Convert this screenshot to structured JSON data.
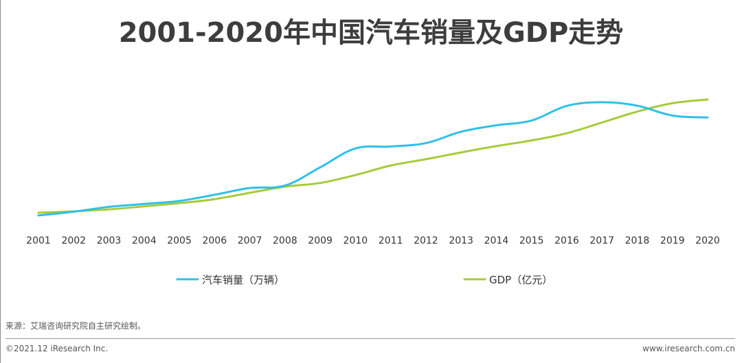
{
  "title": "2001-2020年中国汽车销量及GDP走势",
  "source": "来源：艾瑞咨询研究院自主研究绘制。",
  "copyright": "©2021.12 iResearch Inc.",
  "website": "www.iresearch.com.cn",
  "colors": {
    "sales": "#2EC0E8",
    "gdp": "#A6CB3A",
    "text": "#333333"
  },
  "chart_data": {
    "type": "line",
    "title": "2001-2020年中国汽车销量及GDP走势",
    "x": [
      "2001",
      "2002",
      "2003",
      "2004",
      "2005",
      "2006",
      "2007",
      "2008",
      "2009",
      "2010",
      "2011",
      "2012",
      "2013",
      "2014",
      "2015",
      "2016",
      "2017",
      "2018",
      "2019",
      "2020"
    ],
    "y_axis": "not shown",
    "grid": false,
    "legend_position": "bottom",
    "series": [
      {
        "name": "汽车销量（万辆）",
        "values": [
          237,
          325,
          439,
          507,
          576,
          722,
          879,
          938,
          1364,
          1806,
          1851,
          1931,
          2198,
          2349,
          2460,
          2803,
          2888,
          2808,
          2577,
          2531
        ]
      },
      {
        "name": "GDP（亿元）",
        "values": [
          110863,
          121717,
          137422,
          161840,
          187319,
          219438,
          270092,
          319244,
          348517,
          412119,
          487940,
          538580,
          592963,
          643563,
          688858,
          746395,
          832035,
          919281,
          986515,
          1015986
        ]
      }
    ]
  }
}
